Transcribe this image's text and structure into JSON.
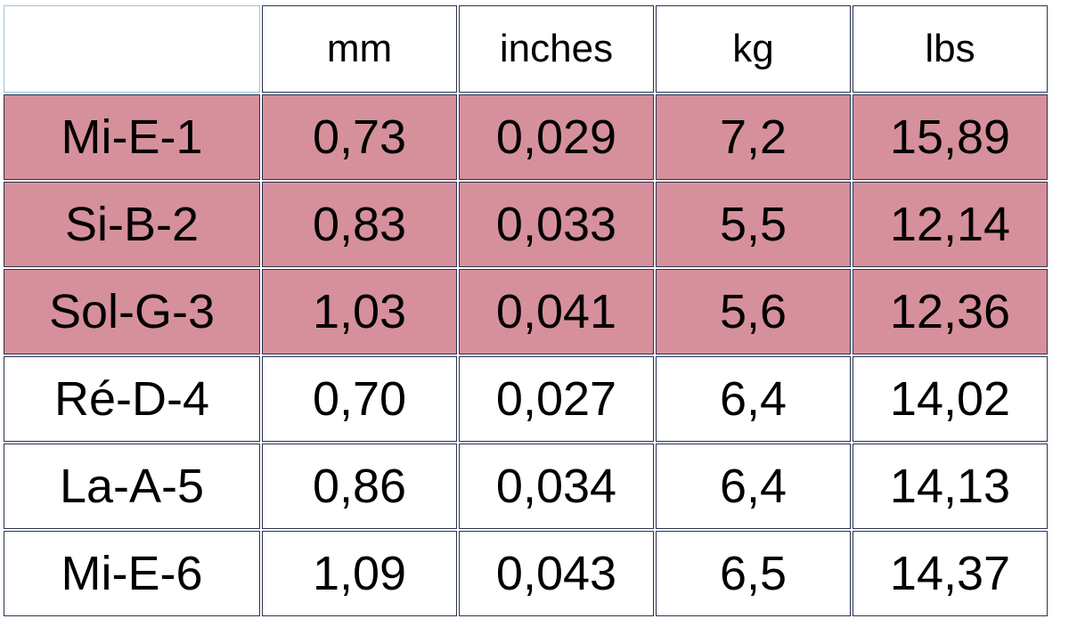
{
  "table": {
    "headers": [
      "",
      "mm",
      "inches",
      "kg",
      "lbs"
    ],
    "rows": [
      {
        "cells": [
          "Mi-E-1",
          "0,73",
          "0,029",
          "7,2",
          "15,89"
        ],
        "highlighted": true
      },
      {
        "cells": [
          "Si-B-2",
          "0,83",
          "0,033",
          "5,5",
          "12,14"
        ],
        "highlighted": true
      },
      {
        "cells": [
          "Sol-G-3",
          "1,03",
          "0,041",
          "5,6",
          "12,36"
        ],
        "highlighted": true
      },
      {
        "cells": [
          "Ré-D-4",
          "0,70",
          "0,027",
          "6,4",
          "14,02"
        ],
        "highlighted": false
      },
      {
        "cells": [
          "La-A-5",
          "0,86",
          "0,034",
          "6,4",
          "14,13"
        ],
        "highlighted": false
      },
      {
        "cells": [
          "Mi-E-6",
          "1,09",
          "0,043",
          "6,5",
          "14,37"
        ],
        "highlighted": false
      }
    ]
  },
  "colors": {
    "highlight": "#d6909b",
    "border": "#2a3350"
  }
}
